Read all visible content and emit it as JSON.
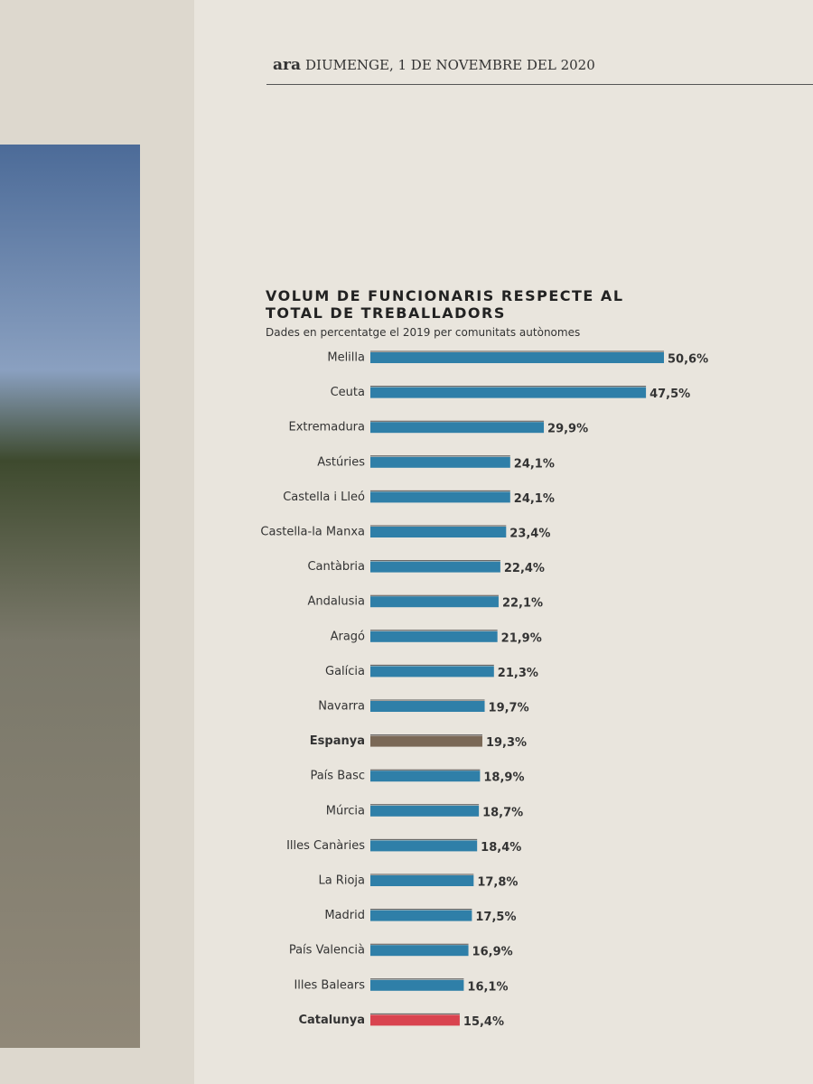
{
  "header": {
    "brand": "ara",
    "date": "DIUMENGE, 1 DE NOVEMBRE DEL 2020"
  },
  "chart_data": {
    "type": "bar",
    "orientation": "horizontal",
    "title": "VOLUM DE FUNCIONARIS RESPECTE AL TOTAL DE TREBALLADORS",
    "subtitle": "Dades en percentatge el 2019 per comunitats autònomes",
    "color": "#2f7fa8",
    "categories": [
      "Melilla",
      "Ceuta",
      "Extremadura",
      "Astúries",
      "Castella i Lleó",
      "Castella-la Manxa",
      "Cantàbria",
      "Andalusia",
      "Aragó",
      "Galícia",
      "Navarra",
      "Espanya",
      "País Basc",
      "Múrcia",
      "Illes Canàries",
      "La Rioja",
      "Madrid",
      "País Valencià",
      "Illes Balears",
      "Catalunya"
    ],
    "values": [
      50.6,
      47.5,
      29.9,
      24.1,
      24.1,
      23.4,
      22.4,
      22.1,
      21.9,
      21.3,
      19.7,
      19.3,
      18.9,
      18.7,
      18.4,
      17.8,
      17.5,
      16.9,
      16.1,
      15.4
    ],
    "value_labels": [
      "50,6%",
      "47,5%",
      "29,9%",
      "24,1%",
      "24,1%",
      "23,4%",
      "22,4%",
      "22,1%",
      "21,9%",
      "21,3%",
      "19,7%",
      "19,3%",
      "18,9%",
      "18,7%",
      "18,4%",
      "17,8%",
      "17,5%",
      "16,9%",
      "16,1%",
      "15,4%"
    ],
    "colors": [
      "#2f7fa8",
      "#2f7fa8",
      "#2f7fa8",
      "#2f7fa8",
      "#2f7fa8",
      "#2f7fa8",
      "#2f7fa8",
      "#2f7fa8",
      "#2f7fa8",
      "#2f7fa8",
      "#2f7fa8",
      "#7a6856",
      "#2f7fa8",
      "#2f7fa8",
      "#2f7fa8",
      "#2f7fa8",
      "#2f7fa8",
      "#2f7fa8",
      "#2f7fa8",
      "#d9434f"
    ]
  }
}
